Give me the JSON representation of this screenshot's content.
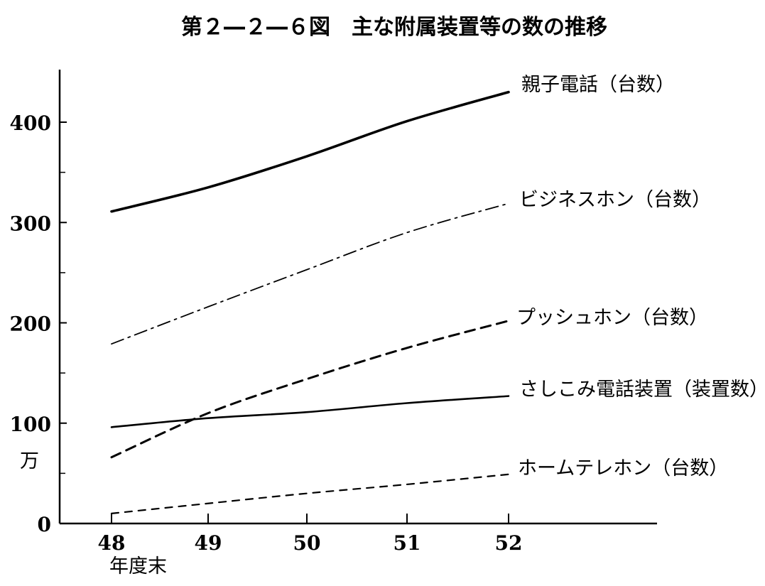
{
  "chart_data": {
    "type": "line",
    "title": "第２―２―６図　主な附属装置等の数の推移",
    "xlabel": "年度末",
    "ylabel": "万",
    "categories": [
      "48",
      "49",
      "50",
      "51",
      "52"
    ],
    "y_ticks": [
      "0",
      "100",
      "200",
      "300",
      "400"
    ],
    "ylim": [
      0,
      450
    ],
    "grid": false,
    "legend": "inline labels at right end of each line",
    "series": [
      {
        "name": "親子電話（台数）",
        "values": [
          311,
          335,
          366,
          401,
          430
        ],
        "style": "solid-thick"
      },
      {
        "name": "ビジネスホン（台数）",
        "values": [
          179,
          216,
          253,
          290,
          319
        ],
        "style": "dash-dot"
      },
      {
        "name": "プッシュホン（台数）",
        "values": [
          66,
          110,
          144,
          175,
          202
        ],
        "style": "dashed-thick"
      },
      {
        "name": "さしこみ電話装置（装置数）",
        "values": [
          96,
          105,
          111,
          120,
          127
        ],
        "style": "solid"
      },
      {
        "name": "ホームテレホン（台数）",
        "values": [
          10,
          20,
          30,
          39,
          49
        ],
        "style": "dashed"
      }
    ],
    "colors": {
      "ink": "#000000",
      "background": "#ffffff"
    }
  }
}
